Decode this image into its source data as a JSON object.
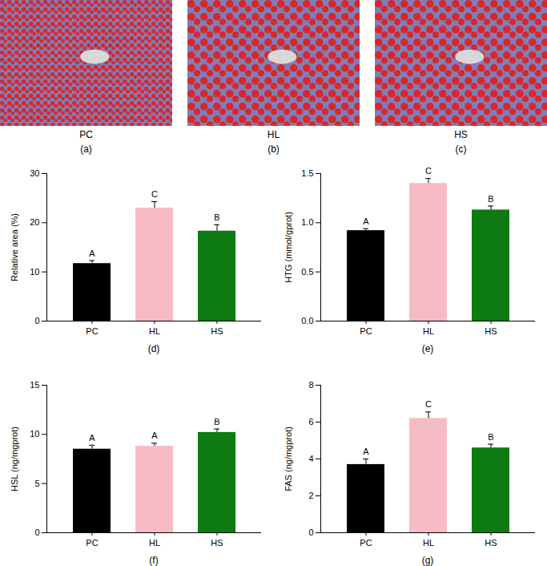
{
  "panels": [
    {
      "label": "PC",
      "tag": "(a)"
    },
    {
      "label": "HL",
      "tag": "(b)"
    },
    {
      "label": "HS",
      "tag": "(c)"
    }
  ],
  "chart_data": [
    {
      "type": "bar",
      "tag": "(d)",
      "ylabel": "Relative area (%)",
      "categories": [
        "PC",
        "HL",
        "HS"
      ],
      "values": [
        11.7,
        23.0,
        18.3
      ],
      "errors": [
        0.6,
        1.3,
        1.3
      ],
      "letters": [
        "A",
        "C",
        "B"
      ],
      "colors": [
        "#000000",
        "#f7bcc3",
        "#0e7a12"
      ],
      "ylim": [
        0,
        30
      ],
      "yticks": [
        0,
        10,
        20,
        30
      ]
    },
    {
      "type": "bar",
      "tag": "(e)",
      "ylabel": "HTG (mmol/gprot)",
      "categories": [
        "PC",
        "HL",
        "HS"
      ],
      "values": [
        0.92,
        1.4,
        1.13
      ],
      "errors": [
        0.02,
        0.05,
        0.04
      ],
      "letters": [
        "A",
        "C",
        "B"
      ],
      "colors": [
        "#000000",
        "#f7bcc3",
        "#0e7a12"
      ],
      "ylim": [
        0,
        1.5
      ],
      "yticks": [
        {
          "value": 0,
          "label": "0.0"
        },
        0.5,
        {
          "value": 1,
          "label": "1.0"
        },
        1.5
      ]
    },
    {
      "type": "bar",
      "tag": "(f)",
      "ylabel": "HSL (ng/mgprot)",
      "categories": [
        "PC",
        "HL",
        "HS"
      ],
      "values": [
        8.5,
        8.8,
        10.2
      ],
      "errors": [
        0.4,
        0.3,
        0.35
      ],
      "letters": [
        "A",
        "A",
        "B"
      ],
      "colors": [
        "#000000",
        "#f7bcc3",
        "#0e7a12"
      ],
      "ylim": [
        0,
        15
      ],
      "yticks": [
        0,
        5,
        10,
        15
      ]
    },
    {
      "type": "bar",
      "tag": "(g)",
      "ylabel": "FAS (ng/mgprot)",
      "categories": [
        "PC",
        "HL",
        "HS"
      ],
      "values": [
        3.7,
        6.2,
        4.6
      ],
      "errors": [
        0.3,
        0.35,
        0.2
      ],
      "letters": [
        "A",
        "C",
        "B"
      ],
      "colors": [
        "#000000",
        "#f7bcc3",
        "#0e7a12"
      ],
      "ylim": [
        0,
        8
      ],
      "yticks": [
        0,
        2,
        4,
        6,
        8
      ]
    }
  ]
}
